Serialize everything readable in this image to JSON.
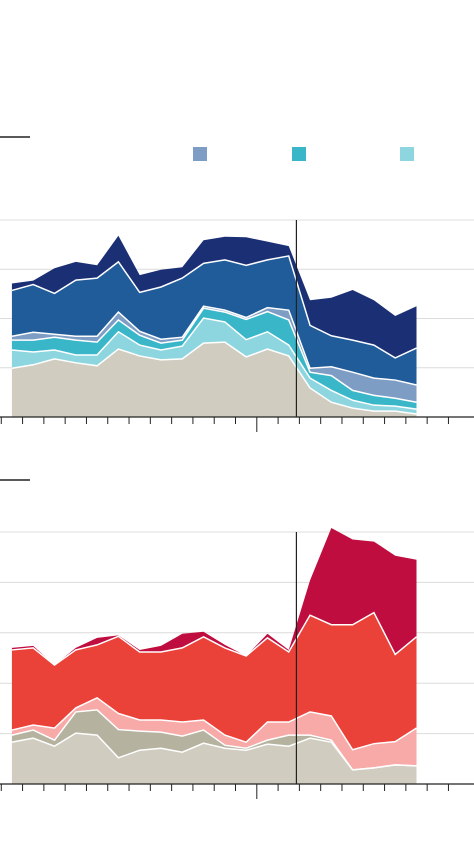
{
  "chart_data": [
    {
      "type": "area",
      "stacked": true,
      "x": [
        0,
        1,
        2,
        3,
        4,
        5,
        6,
        7,
        8,
        9,
        10,
        11,
        12,
        13,
        14,
        15,
        16,
        17,
        18,
        19
      ],
      "xlim": [
        -0.56,
        21.7
      ],
      "xticks": [
        -0.5,
        0.5,
        1.5,
        2.5,
        3.5,
        4.5,
        5.5,
        6.5,
        7.5,
        8.5,
        9.5,
        10.5,
        11.5,
        12.5,
        13.5,
        14.5,
        15.5,
        16.5,
        17.5,
        18.5,
        19.5,
        20.5
      ],
      "major_xtick": 11.5,
      "ylim": [
        0,
        4
      ],
      "yticks": [
        0,
        1,
        2,
        3,
        4
      ],
      "grid": true,
      "vline": 13.36,
      "series": [
        {
          "color": "#d0cdc0",
          "values": [
            0.99,
            1.06,
            1.18,
            1.1,
            1.04,
            1.38,
            1.24,
            1.16,
            1.18,
            1.5,
            1.52,
            1.22,
            1.38,
            1.24,
            0.59,
            0.3,
            0.18,
            0.12,
            0.12,
            0.06
          ]
        },
        {
          "color": "#8dd6e0",
          "in_legend": true,
          "values": [
            0.37,
            0.26,
            0.18,
            0.16,
            0.22,
            0.35,
            0.22,
            0.2,
            0.26,
            0.51,
            0.41,
            0.35,
            0.35,
            0.22,
            0.2,
            0.24,
            0.16,
            0.12,
            0.1,
            0.1
          ]
        },
        {
          "color": "#3ab6c9",
          "in_legend": true,
          "values": [
            0.2,
            0.24,
            0.26,
            0.3,
            0.26,
            0.24,
            0.2,
            0.14,
            0.12,
            0.2,
            0.2,
            0.41,
            0.41,
            0.51,
            0.12,
            0.3,
            0.2,
            0.2,
            0.16,
            0.14
          ]
        },
        {
          "color": "#7e9dc4",
          "in_legend": true,
          "values": [
            0.08,
            0.16,
            0.06,
            0.08,
            0.12,
            0.16,
            0.08,
            0.08,
            0.06,
            0.04,
            0.04,
            0.04,
            0.08,
            0.2,
            0.08,
            0.18,
            0.37,
            0.35,
            0.37,
            0.35
          ]
        },
        {
          "color": "#1f5c99",
          "values": [
            0.93,
            0.97,
            0.83,
            1.14,
            1.18,
            1.02,
            0.79,
            1.06,
            1.2,
            0.87,
            1.02,
            1.06,
            0.97,
            1.1,
            0.87,
            0.63,
            0.65,
            0.67,
            0.45,
            0.75
          ]
        },
        {
          "color": "#1b2f75",
          "values": [
            0.14,
            0.08,
            0.51,
            0.37,
            0.26,
            0.53,
            0.35,
            0.35,
            0.22,
            0.47,
            0.47,
            0.57,
            0.37,
            0.2,
            0.51,
            0.77,
            1.02,
            0.91,
            0.85,
            0.85
          ]
        }
      ]
    },
    {
      "type": "area",
      "stacked": true,
      "x": [
        0,
        1,
        2,
        3,
        4,
        5,
        6,
        7,
        8,
        9,
        10,
        11,
        12,
        13,
        14,
        15,
        16,
        17,
        18,
        19
      ],
      "xlim": [
        -0.56,
        21.7
      ],
      "xticks": [
        -0.5,
        0.5,
        1.5,
        2.5,
        3.5,
        4.5,
        5.5,
        6.5,
        7.5,
        8.5,
        9.5,
        10.5,
        11.5,
        12.5,
        13.5,
        14.5,
        15.5,
        16.5,
        17.5,
        18.5,
        19.5,
        20.5
      ],
      "major_xtick": 11.5,
      "ylim": [
        0,
        5
      ],
      "yticks": [
        0,
        1,
        2,
        3,
        4,
        5
      ],
      "grid": true,
      "vline": 13.36,
      "series": [
        {
          "color": "#d0cdc0",
          "values": [
            0.83,
            0.91,
            0.75,
            1.01,
            0.97,
            0.52,
            0.67,
            0.71,
            0.63,
            0.81,
            0.71,
            0.67,
            0.79,
            0.75,
            0.91,
            0.83,
            0.28,
            0.32,
            0.38,
            0.36
          ]
        },
        {
          "color": "#b5b3a0",
          "values": [
            0.14,
            0.16,
            0.12,
            0.42,
            0.5,
            0.56,
            0.38,
            0.32,
            0.32,
            0.26,
            0.06,
            0.04,
            0.08,
            0.22,
            0.06,
            0.04,
            0,
            0,
            0,
            0
          ]
        },
        {
          "color": "#f7aaa8",
          "values": [
            0.1,
            0.1,
            0.24,
            0.08,
            0.24,
            0.32,
            0.22,
            0.24,
            0.28,
            0.2,
            0.2,
            0.12,
            0.36,
            0.26,
            0.46,
            0.48,
            0.4,
            0.48,
            0.46,
            0.75
          ]
        },
        {
          "color": "#ea4139",
          "values": [
            1.59,
            1.53,
            1.25,
            1.15,
            1.05,
            1.53,
            1.35,
            1.35,
            1.47,
            1.65,
            1.73,
            1.71,
            1.67,
            1.39,
            1.92,
            1.81,
            2.48,
            2.6,
            1.73,
            1.81
          ]
        },
        {
          "color": "#c00d3f",
          "values": [
            0.04,
            0.04,
            0,
            0.04,
            0.14,
            0.02,
            0.04,
            0.12,
            0.28,
            0.1,
            0.06,
            0,
            0.08,
            0.04,
            0.69,
            1.92,
            1.69,
            1.41,
            1.96,
            1.53
          ]
        }
      ]
    }
  ]
}
